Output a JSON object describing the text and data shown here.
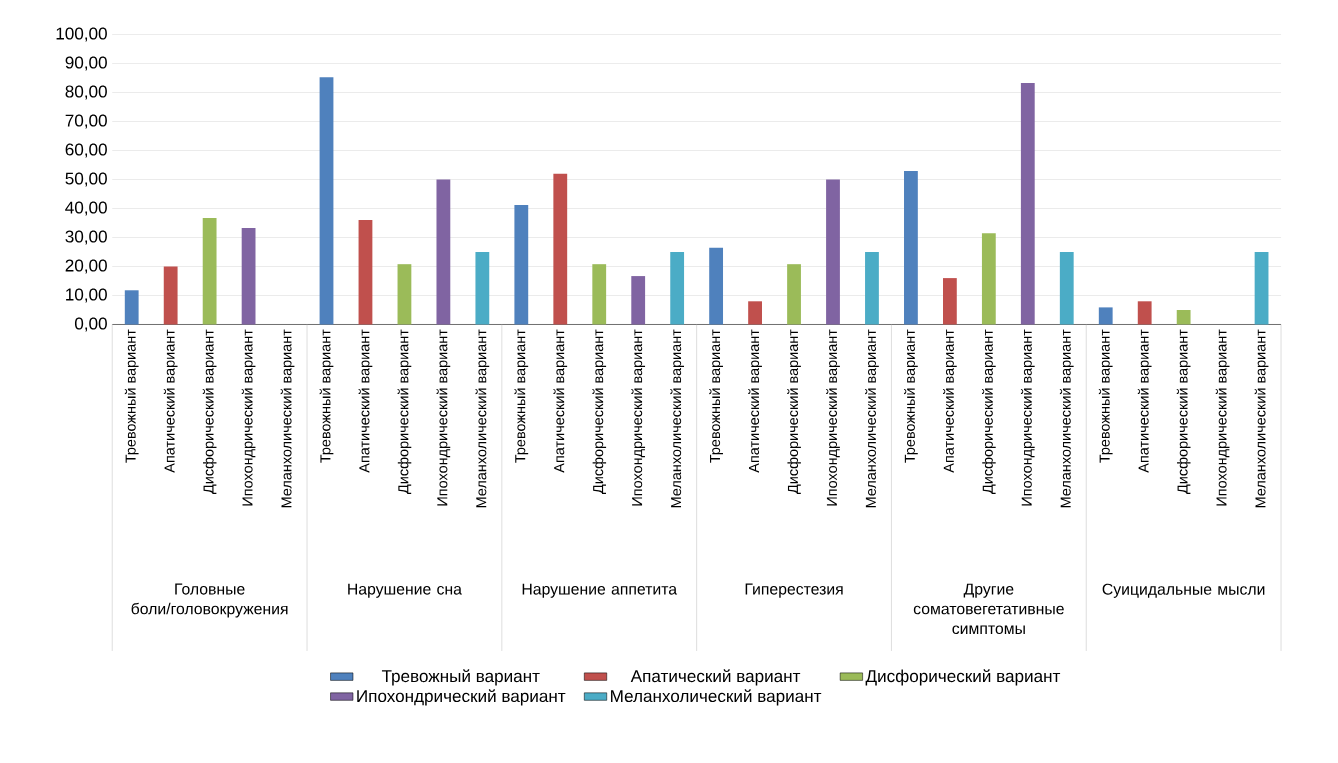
{
  "chart_data": {
    "type": "bar",
    "categories": [
      "Тревожный вариант",
      "Апатический вариант",
      "Дисфорический вариант",
      "Ипохондрический вариант",
      "Меланхолический вариант",
      "Тревожный вариант",
      "Апатический вариант",
      "Дисфорический вариант",
      "Ипохондрический вариант",
      "Меланхолический вариант",
      "Тревожный вариант",
      "Апатический вариант",
      "Дисфорический вариант",
      "Ипохондрический вариант",
      "Меланхолический вариант",
      "Тревожный вариант",
      "Апатический вариант",
      "Дисфорический вариант",
      "Ипохондрический вариант",
      "Меланхолический вариант",
      "Тревожный вариант",
      "Апатический вариант",
      "Дисфорический вариант",
      "Ипохондрический вариант",
      "Меланхолический вариант",
      "Тревожный вариант",
      "Апатический вариант",
      "Дисфорический вариант",
      "Ипохондрический вариант",
      "Меланхолический вариант"
    ],
    "annotations": [
      "Головные боли/головокружения",
      "Нарушение сна",
      "Нарушение аппетита",
      "Гиперестезия",
      "Другие соматовегетативные симптомы",
      "Суицидальные мысли"
    ],
    "series": [
      {
        "name": "Тревожный вариант",
        "color": "#4f81bd",
        "values": [
          11.8,
          null,
          null,
          null,
          null,
          85.3,
          null,
          null,
          null,
          null,
          41.2,
          null,
          null,
          null,
          null,
          26.5,
          null,
          null,
          null,
          null,
          52.9,
          null,
          null,
          null,
          null,
          5.9,
          null,
          null,
          null,
          null
        ]
      },
      {
        "name": "Апатический вариант",
        "color": "#c0504d",
        "values": [
          null,
          20.0,
          null,
          null,
          null,
          null,
          36.0,
          null,
          null,
          null,
          null,
          52.0,
          null,
          null,
          null,
          null,
          8.0,
          null,
          null,
          null,
          null,
          16.0,
          null,
          null,
          null,
          null,
          8.0,
          null,
          null,
          null
        ]
      },
      {
        "name": "Дисфорический вариант",
        "color": "#9bbb59",
        "values": [
          null,
          null,
          36.7,
          null,
          null,
          null,
          null,
          20.8,
          null,
          null,
          null,
          null,
          20.8,
          null,
          null,
          null,
          null,
          20.8,
          null,
          null,
          null,
          null,
          31.5,
          null,
          null,
          null,
          null,
          5.0,
          null,
          null
        ]
      },
      {
        "name": "Ипохондрический вариант",
        "color": "#8064a2",
        "values": [
          null,
          null,
          null,
          33.3,
          null,
          null,
          null,
          null,
          50.0,
          null,
          null,
          null,
          null,
          16.7,
          null,
          null,
          null,
          null,
          50.0,
          null,
          null,
          null,
          null,
          83.3,
          null,
          null,
          null,
          null,
          0,
          null
        ]
      },
      {
        "name": "Меланхолический вариант",
        "color": "#4bacc6",
        "values": [
          null,
          null,
          null,
          null,
          0,
          null,
          null,
          null,
          null,
          25.0,
          null,
          null,
          null,
          null,
          25.0,
          null,
          null,
          null,
          null,
          25.0,
          null,
          null,
          null,
          null,
          25.0,
          null,
          null,
          null,
          null,
          25.0
        ]
      }
    ],
    "ylim": [
      0,
      100
    ],
    "yticks": [
      {
        "value": 0,
        "label": "0,00"
      },
      {
        "value": 10,
        "label": "10,00"
      },
      {
        "value": 20,
        "label": "20,00"
      },
      {
        "value": 30,
        "label": "30,00"
      },
      {
        "value": 40,
        "label": "40,00"
      },
      {
        "value": 50,
        "label": "50,00"
      },
      {
        "value": 60,
        "label": "60,00"
      },
      {
        "value": 70,
        "label": "70,00"
      },
      {
        "value": 80,
        "label": "80,00"
      },
      {
        "value": 90,
        "label": "90,00"
      },
      {
        "value": 100,
        "label": "100,00"
      }
    ],
    "grid": "y",
    "legend": "bottom"
  }
}
